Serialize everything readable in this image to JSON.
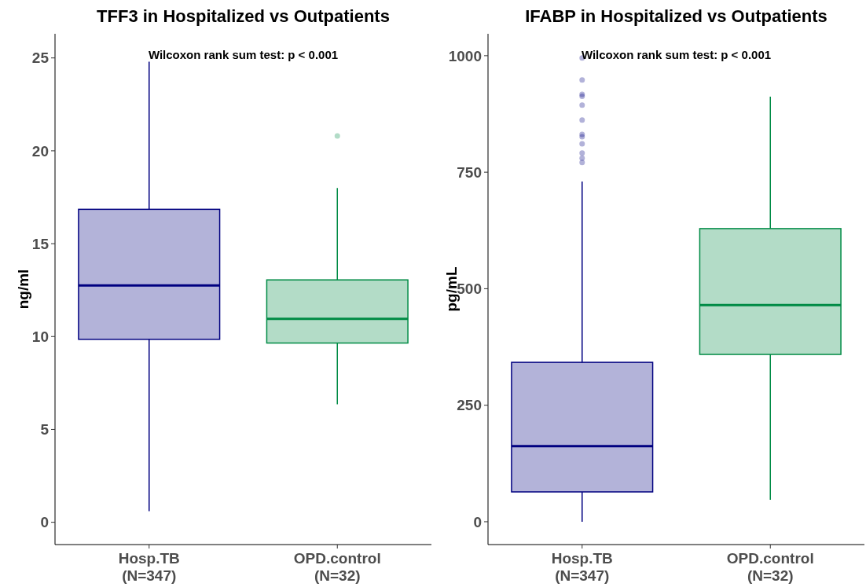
{
  "chart_data": [
    {
      "type": "box",
      "title": "TFF3 in Hospitalized vs Outpatients",
      "ylabel": "ng/ml",
      "categories": [
        "Hosp.TB\n(N=347)",
        "OPD.control\n(N=32)"
      ],
      "colors": [
        "#000080",
        "#008b45"
      ],
      "ylim": [
        -1.2,
        26.3
      ],
      "yticks": [
        0,
        5,
        10,
        15,
        20,
        25
      ],
      "grid": false,
      "annotations": [
        "Wilcoxon rank sum test: p < 0.001"
      ],
      "boxes": [
        {
          "low": 0.6,
          "q1": 9.85,
          "median": 12.75,
          "q3": 16.85,
          "high": 24.8
        },
        {
          "low": 6.35,
          "q1": 9.65,
          "median": 10.95,
          "q3": 13.05,
          "high": 18.0,
          "outliers": [
            20.8
          ]
        }
      ]
    },
    {
      "type": "box",
      "title": "IFABP in Hospitalized vs Outpatients",
      "ylabel": "pg/mL",
      "categories": [
        "Hosp.TB\n(N=347)",
        "OPD.control\n(N=32)"
      ],
      "colors": [
        "#000080",
        "#008b45"
      ],
      "ylim": [
        -49,
        1047
      ],
      "yticks": [
        0,
        250,
        500,
        750,
        1000
      ],
      "grid": false,
      "annotations": [
        "Wilcoxon rank sum test: p < 0.001"
      ],
      "boxes": [
        {
          "low": 0,
          "q1": 64,
          "median": 162,
          "q3": 342,
          "high": 730,
          "outliers": [
            995,
            948,
            917,
            913,
            894,
            862,
            831,
            826,
            811,
            791,
            780,
            771
          ]
        },
        {
          "low": 47,
          "q1": 359,
          "median": 465,
          "q3": 629,
          "high": 912
        }
      ]
    }
  ]
}
